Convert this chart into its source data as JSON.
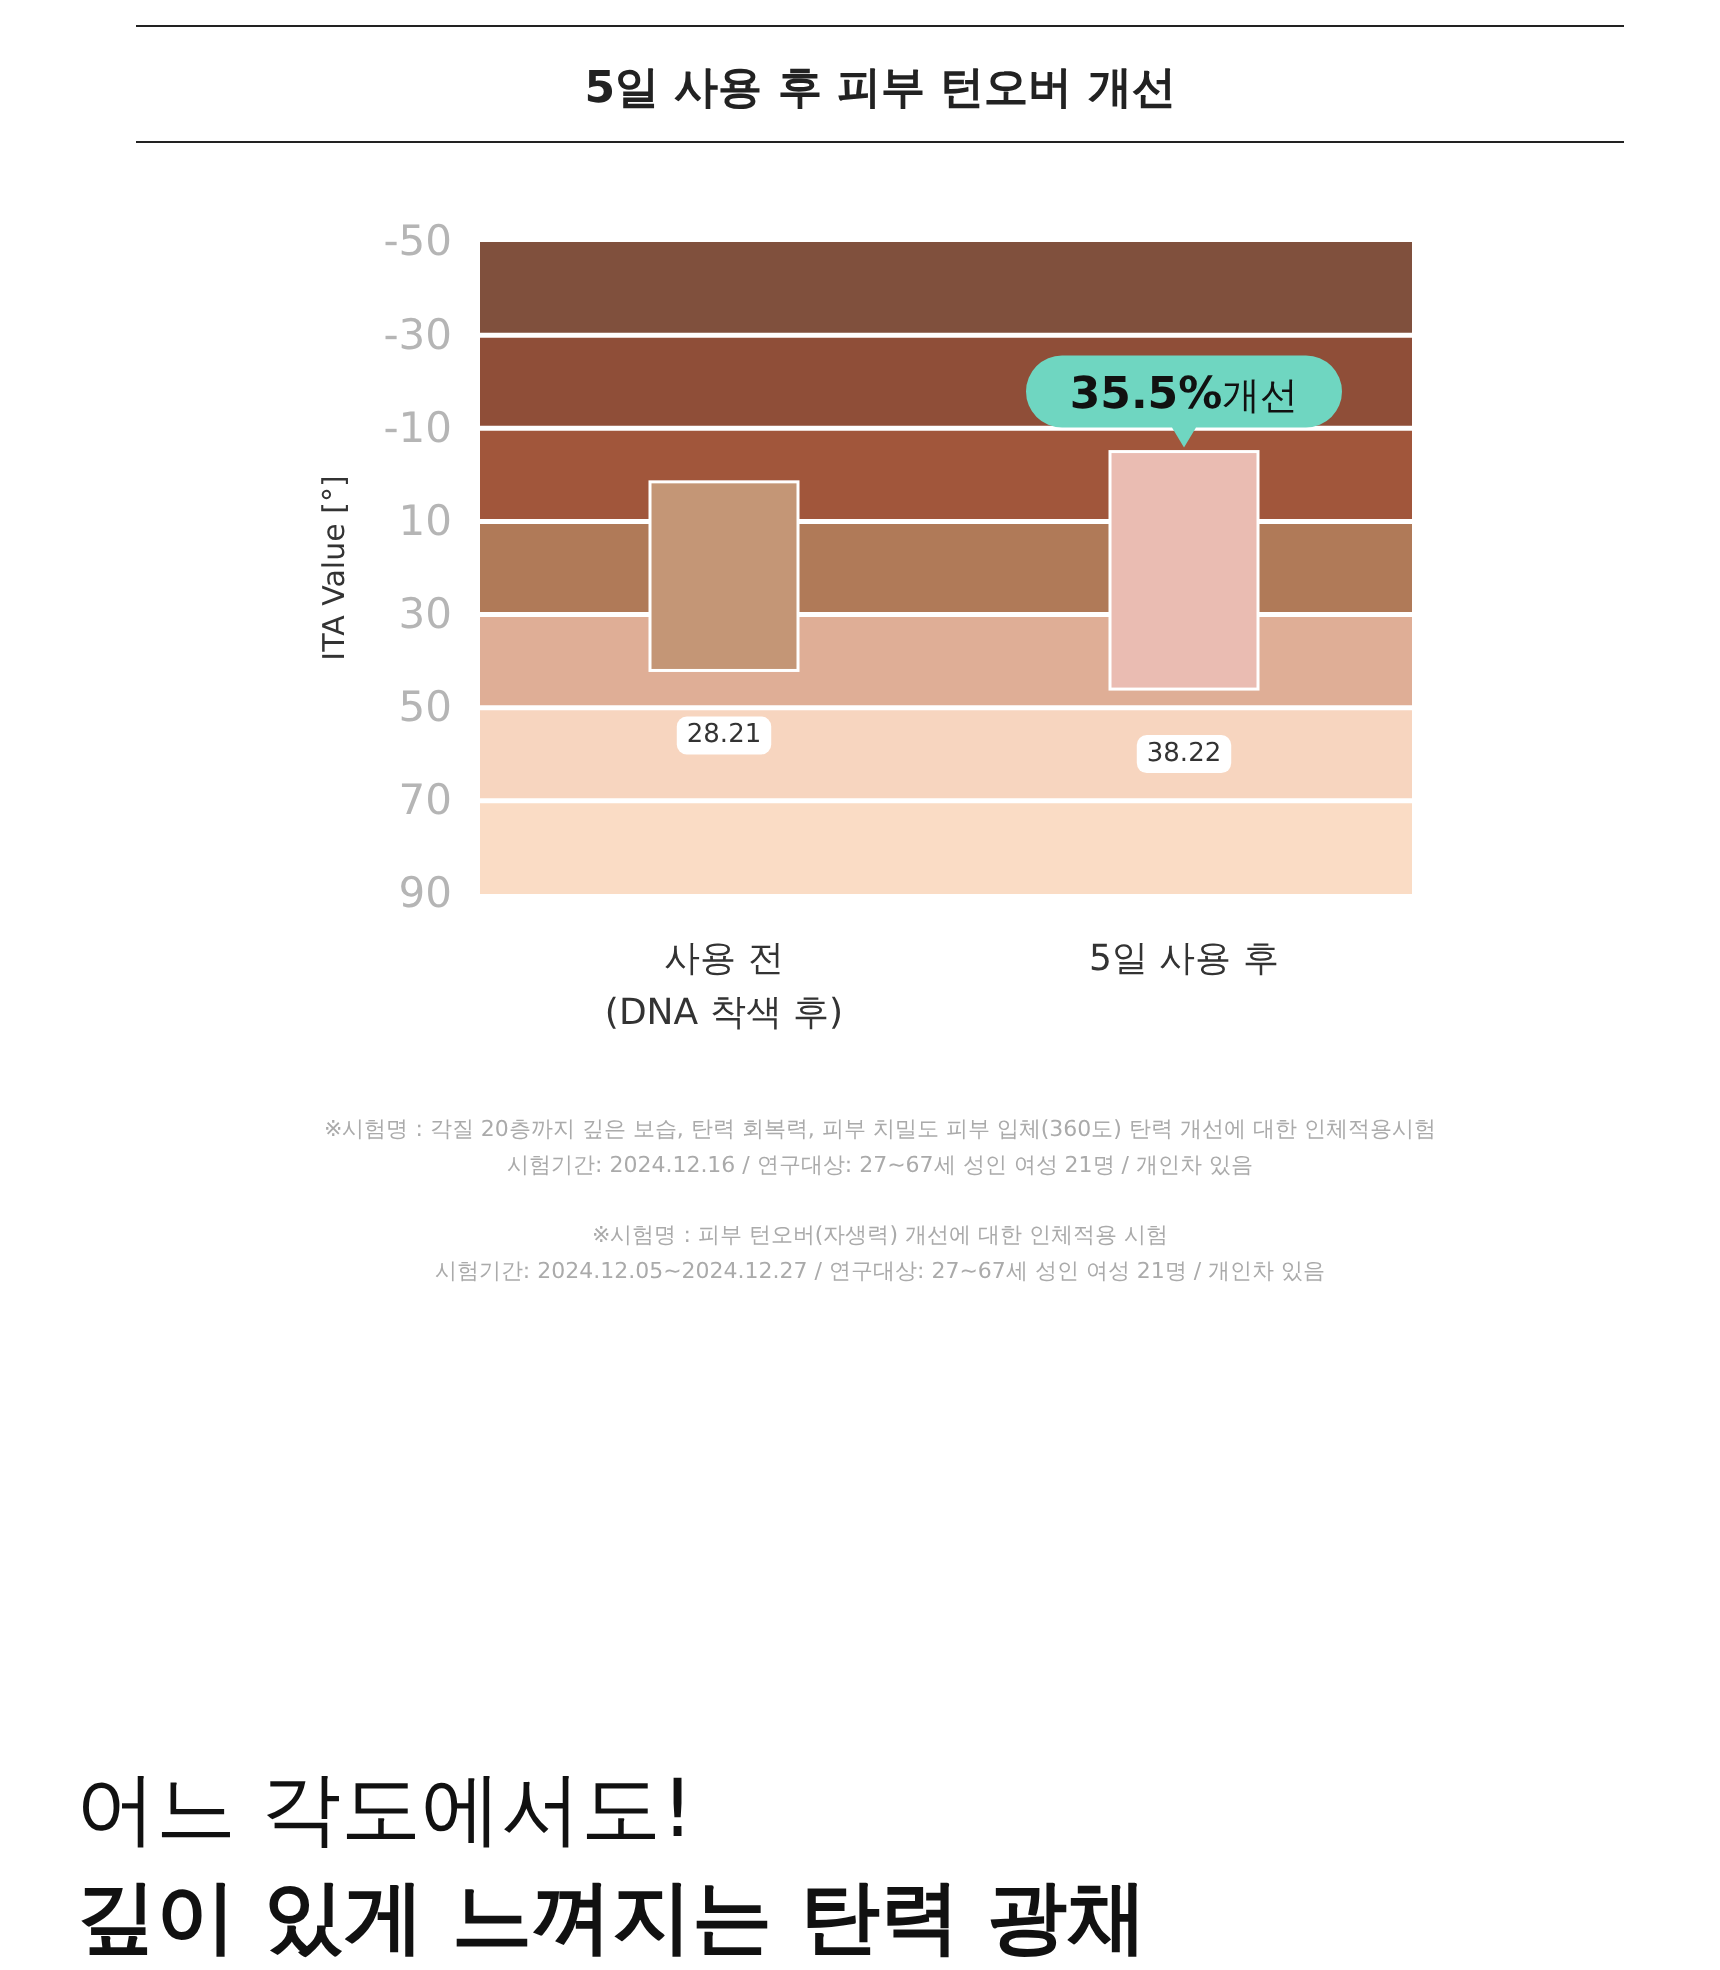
{
  "chart_data": {
    "type": "bar",
    "title": "5일 사용 후 피부 턴오버 개선",
    "ylabel": "ITA Value [°]",
    "categories": [
      "사용 전\n(DNA 착색 후)",
      "5일 사용 후"
    ],
    "base": [
      1.5,
      -5
    ],
    "values": [
      40.5,
      51
    ],
    "colors": [
      "#c49676",
      "#eabcb2"
    ],
    "ylim": [
      90,
      -50
    ],
    "yticks": [
      -50,
      -30,
      -10,
      10,
      30,
      50,
      70,
      90
    ],
    "grid": "y",
    "bands": [
      {
        "axis": "y",
        "from": -50,
        "to": -30,
        "color": "#80503d"
      },
      {
        "axis": "y",
        "from": -30,
        "to": -10,
        "color": "#8f4e38"
      },
      {
        "axis": "y",
        "from": -10,
        "to": 10,
        "color": "#a1563b"
      },
      {
        "axis": "y",
        "from": 10,
        "to": 30,
        "color": "#b07a58"
      },
      {
        "axis": "y",
        "from": 30,
        "to": 50,
        "color": "#dfae96"
      },
      {
        "axis": "y",
        "from": 50,
        "to": 70,
        "color": "#f7d5bf"
      },
      {
        "axis": "y",
        "from": 70,
        "to": 90,
        "color": "#fadcc5"
      }
    ],
    "annotations": [
      "28.21",
      "38.22",
      "35.5%개선",
      "※시험명 : 각질 20층까지 깊은 보습, 탄력 회복력, 피부 치밀도 피부 입체(360도) 탄력 개선에 대한 인체적용시험",
      "시험기간: 2024.12.16 / 연구대상: 27~67세 성인 여성 21명 / 개인차 있음",
      "※시험명 : 피부 턴오버(자생력) 개선에 대한 인체적용 시험",
      "시험기간: 2024.12.05~2024.12.27 / 연구대상: 27~67세 성인 여성 21명 / 개인차 있음",
      "어느 각도에서도!",
      "깊이 있게 느껴지는 탄력 광채"
    ]
  }
}
